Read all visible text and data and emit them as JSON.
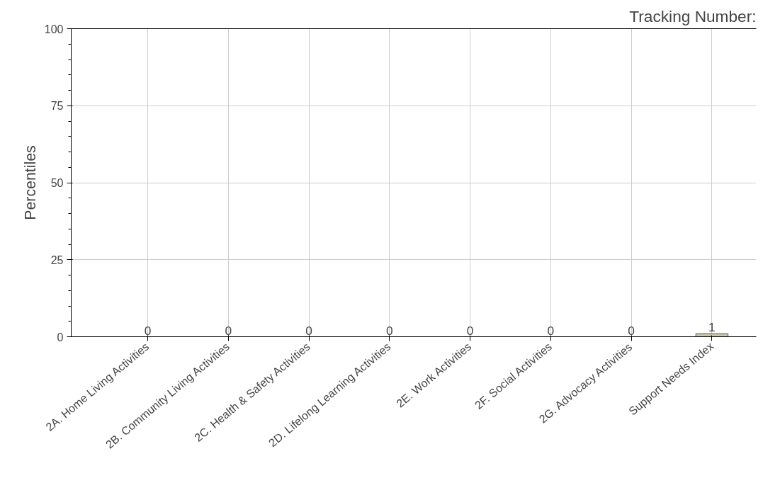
{
  "chart_data": {
    "type": "bar",
    "title": "Tracking Number:",
    "ylabel": "Percentiles",
    "categories": [
      "2A. Home Living Activities",
      "2B. Community Living Activities",
      "2C. Health & Safety Activities",
      "2D. Lifelong Learning Activities",
      "2E. Work Activities",
      "2F. Social Activities",
      "2G. Advocacy Activities",
      "Support Needs Index"
    ],
    "values": [
      0,
      0,
      0,
      0,
      0,
      0,
      0,
      1
    ],
    "color": "#c9c6ad",
    "ylim": [
      0,
      100
    ],
    "yticks": [
      0,
      25,
      50,
      75,
      100
    ],
    "grid": true,
    "data_labels": true
  }
}
